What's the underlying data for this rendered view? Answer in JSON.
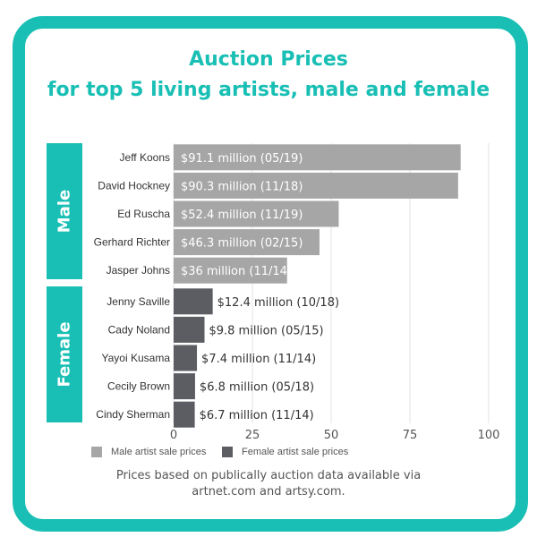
{
  "header": {
    "title": "Auction Prices",
    "subtitle": "for top 5 living artists, male and female"
  },
  "groups": {
    "male": "Male",
    "female": "Female"
  },
  "colors": {
    "accent": "#19bfb4",
    "male_bar": "#a6a6a6",
    "female_bar": "#5b5d63",
    "grid": "#e3e3e3"
  },
  "legend": {
    "male": "Male artist sale prices",
    "female": "Female artist sale prices"
  },
  "footnote": {
    "line1": "Prices based on publically auction data available via",
    "line2": "artnet.com and artsy.com."
  },
  "chart_data": {
    "type": "bar",
    "orientation": "horizontal",
    "categories": [
      "Jeff Koons",
      "David Hockney",
      "Ed Ruscha",
      "Gerhard Richter",
      "Jasper Johns",
      "Jenny Saville",
      "Cady Noland",
      "Yayoi Kusama",
      "Cecily Brown",
      "Cindy Sherman"
    ],
    "values": [
      91.1,
      90.3,
      52.4,
      46.3,
      36,
      12.4,
      9.8,
      7.4,
      6.8,
      6.7
    ],
    "groups": [
      "male",
      "male",
      "male",
      "male",
      "male",
      "female",
      "female",
      "female",
      "female",
      "female"
    ],
    "data_labels": [
      "$91.1 million (05/19)",
      "$90.3 million (11/18)",
      "$52.4 million (11/19)",
      "$46.3 million (02/15)",
      "$36 million (11/14)",
      "$12.4 million (10/18)",
      "$9.8 million (05/15)",
      "$7.4 million (11/14)",
      "$6.8 million (05/18)",
      "$6.7 million (11/14)"
    ],
    "xlim": [
      0,
      100
    ],
    "xticks": [
      0,
      25,
      50,
      75,
      100
    ],
    "grid": true,
    "legend_position": "bottom"
  }
}
